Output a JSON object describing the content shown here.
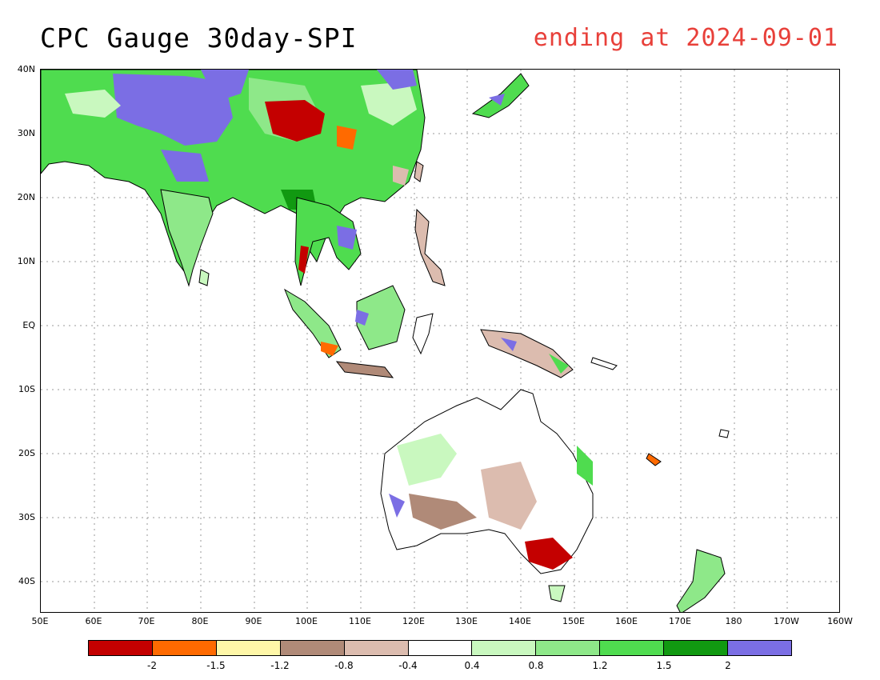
{
  "title": "CPC Gauge 30day-SPI",
  "subtitle": "ending at 2024-09-01",
  "lat_labels": [
    "40N",
    "30N",
    "20N",
    "10N",
    "EQ",
    "10S",
    "20S",
    "30S",
    "40S"
  ],
  "lon_labels": [
    "50E",
    "60E",
    "70E",
    "80E",
    "90E",
    "100E",
    "110E",
    "120E",
    "130E",
    "140E",
    "150E",
    "160E",
    "170E",
    "180",
    "170W",
    "160W"
  ],
  "legend": {
    "colors": [
      "#c40000",
      "#ff6a00",
      "#fff7a8",
      "#b08a78",
      "#dcbcaf",
      "#ffffff",
      "#c9f8bf",
      "#8ee889",
      "#4fdc4f",
      "#119911",
      "#7b6ee4"
    ],
    "levels": [
      "-2",
      "-1.5",
      "-1.2",
      "-0.8",
      "-0.4",
      "0.4",
      "0.8",
      "1.2",
      "1.5",
      "2"
    ]
  },
  "map": {
    "land_outline_color": "#000000",
    "grid_color": "#888888"
  }
}
